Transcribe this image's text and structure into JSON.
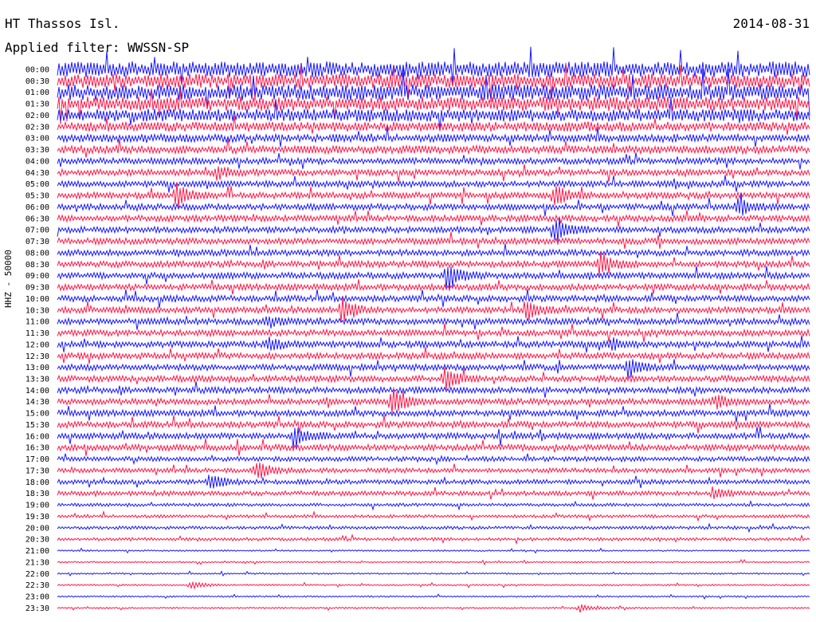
{
  "header": {
    "station": "HT Thassos Isl.",
    "date": "2014-08-31",
    "filter": "Applied filter: WWSSN-SP"
  },
  "chart_data": {
    "type": "line",
    "title": "HT Thassos Isl.",
    "date": "2014-08-31",
    "filter": "WWSSN-SP",
    "ylabel": "HHZ - 50000",
    "row_labels": [
      "00:00",
      "00:30",
      "01:00",
      "01:30",
      "02:00",
      "02:30",
      "03:00",
      "03:30",
      "04:00",
      "04:30",
      "05:00",
      "05:30",
      "06:00",
      "06:30",
      "07:00",
      "07:30",
      "08:00",
      "08:30",
      "09:00",
      "09:30",
      "10:00",
      "10:30",
      "11:00",
      "11:30",
      "12:00",
      "12:30",
      "13:00",
      "13:30",
      "14:00",
      "14:30",
      "15:00",
      "15:30",
      "16:00",
      "16:30",
      "17:00",
      "17:30",
      "18:00",
      "18:30",
      "19:00",
      "19:30",
      "20:00",
      "20:30",
      "21:00",
      "21:30",
      "22:00",
      "22:30",
      "23:00",
      "23:30"
    ],
    "row_minutes": 30,
    "colors": [
      "#1a1aff",
      "#ff1a4a"
    ],
    "noise_level": [
      10,
      9,
      10,
      9,
      8,
      6,
      5,
      5,
      4,
      4,
      4,
      4,
      4,
      4,
      4,
      4,
      4,
      4,
      4,
      4,
      4,
      4,
      4,
      4,
      4,
      4,
      4,
      4,
      4,
      4,
      4,
      4,
      4,
      4,
      3,
      3,
      3,
      3,
      2,
      2,
      2,
      2,
      1,
      1,
      1,
      1,
      1,
      1
    ],
    "events": [
      {
        "row": 9,
        "minute": 6.3,
        "amplitude": 10
      },
      {
        "row": 11,
        "minute": 4.7,
        "amplitude": 18
      },
      {
        "row": 11,
        "minute": 19.8,
        "amplitude": 16
      },
      {
        "row": 12,
        "minute": 27.1,
        "amplitude": 12
      },
      {
        "row": 14,
        "minute": 19.8,
        "amplitude": 18
      },
      {
        "row": 17,
        "minute": 21.6,
        "amplitude": 18
      },
      {
        "row": 18,
        "minute": 15.5,
        "amplitude": 22
      },
      {
        "row": 21,
        "minute": 11.3,
        "amplitude": 18
      },
      {
        "row": 21,
        "minute": 18.6,
        "amplitude": 16
      },
      {
        "row": 22,
        "minute": 8.3,
        "amplitude": 8
      },
      {
        "row": 24,
        "minute": 8.4,
        "amplitude": 10
      },
      {
        "row": 24,
        "minute": 22.0,
        "amplitude": 10
      },
      {
        "row": 26,
        "minute": 22.7,
        "amplitude": 14
      },
      {
        "row": 27,
        "minute": 15.4,
        "amplitude": 16
      },
      {
        "row": 29,
        "minute": 13.3,
        "amplitude": 22
      },
      {
        "row": 29,
        "minute": 26.2,
        "amplitude": 10
      },
      {
        "row": 32,
        "minute": 9.4,
        "amplitude": 16
      },
      {
        "row": 35,
        "minute": 7.9,
        "amplitude": 14
      },
      {
        "row": 36,
        "minute": 6.0,
        "amplitude": 14
      },
      {
        "row": 37,
        "minute": 26.1,
        "amplitude": 8
      },
      {
        "row": 45,
        "minute": 5.3,
        "amplitude": 6
      },
      {
        "row": 47,
        "minute": 20.8,
        "amplitude": 6
      }
    ]
  }
}
